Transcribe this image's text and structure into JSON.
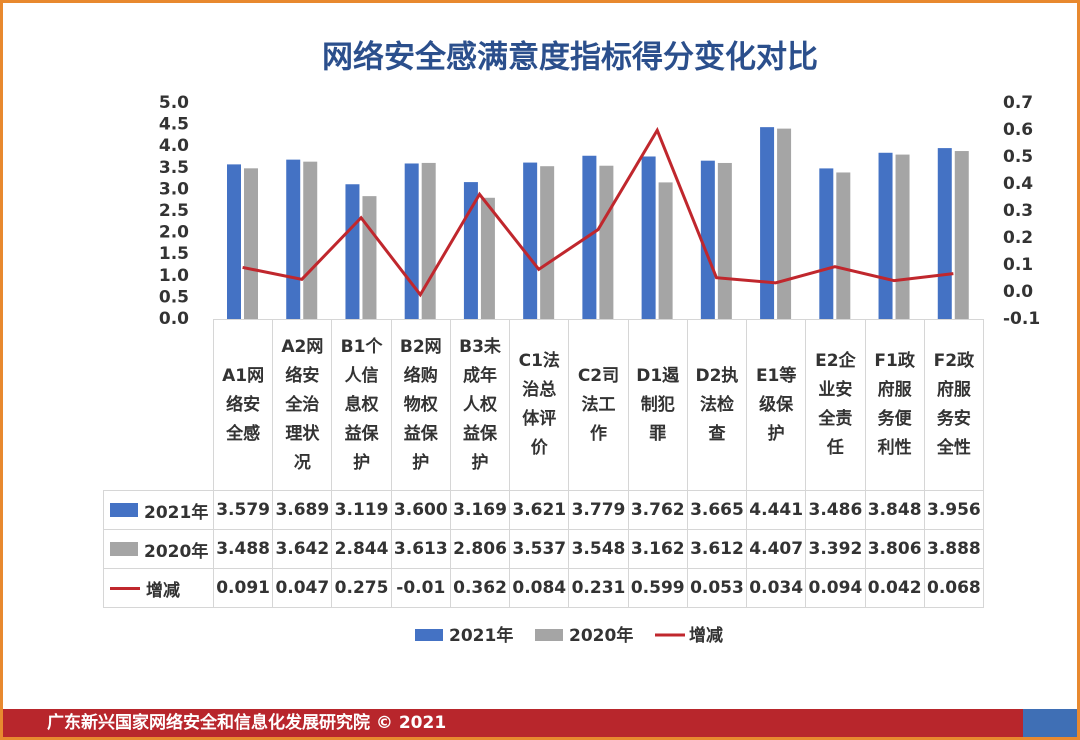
{
  "chart_data": {
    "type": "bar-line-table",
    "title": "网络安全感满意度指标得分变化对比",
    "categories": [
      "A1网络安全感",
      "A2网络安全治理状况",
      "B1个人信息权益保护",
      "B2网络购物权益保护",
      "B3未成年人权益保护",
      "C1法治总体评价",
      "C2司法工作",
      "D1遏制犯罪",
      "D2执法检查",
      "E1等级保护",
      "E2企业安全责任",
      "F1政府服务便利性",
      "F2政府服务安全性"
    ],
    "series": [
      {
        "name": "2021年",
        "color": "#4472c4",
        "type": "bar",
        "values": [
          3.579,
          3.689,
          3.119,
          3.6,
          3.169,
          3.621,
          3.779,
          3.762,
          3.665,
          4.441,
          3.486,
          3.848,
          3.956
        ],
        "value_labels": [
          "3.579",
          "3.689",
          "3.119",
          "3.600",
          "3.169",
          "3.621",
          "3.779",
          "3.762",
          "3.665",
          "4.441",
          "3.486",
          "3.848",
          "3.956"
        ]
      },
      {
        "name": "2020年",
        "color": "#a5a5a5",
        "type": "bar",
        "values": [
          3.488,
          3.642,
          2.844,
          3.613,
          2.806,
          3.537,
          3.548,
          3.162,
          3.612,
          4.407,
          3.392,
          3.806,
          3.888
        ],
        "value_labels": [
          "3.488",
          "3.642",
          "2.844",
          "3.613",
          "2.806",
          "3.537",
          "3.548",
          "3.162",
          "3.612",
          "4.407",
          "3.392",
          "3.806",
          "3.888"
        ]
      },
      {
        "name": "增减",
        "color": "#c0272d",
        "type": "line",
        "axis": "y2",
        "values": [
          0.091,
          0.047,
          0.275,
          -0.01,
          0.362,
          0.084,
          0.231,
          0.599,
          0.053,
          0.034,
          0.094,
          0.042,
          0.068
        ],
        "value_labels": [
          "0.091",
          "0.047",
          "0.275",
          "-0.01",
          "0.362",
          "0.084",
          "0.231",
          "0.599",
          "0.053",
          "0.034",
          "0.094",
          "0.042",
          "0.068"
        ]
      }
    ],
    "ylim": [
      0,
      5
    ],
    "yticks": [
      {
        "value": 0,
        "label": "0.0"
      },
      {
        "value": 0.5,
        "label": "0.5"
      },
      {
        "value": 1,
        "label": "1.0"
      },
      {
        "value": 1.5,
        "label": "1.5"
      },
      {
        "value": 2,
        "label": "2.0"
      },
      {
        "value": 2.5,
        "label": "2.5"
      },
      {
        "value": 3,
        "label": "3.0"
      },
      {
        "value": 3.5,
        "label": "3.5"
      },
      {
        "value": 4,
        "label": "4.0"
      },
      {
        "value": 4.5,
        "label": "4.5"
      },
      {
        "value": 5,
        "label": "5.0"
      }
    ],
    "y2lim": [
      -0.1,
      0.7
    ],
    "y2ticks": [
      -0.1,
      {
        "value": 0,
        "label": "0.0"
      },
      0.1,
      0.2,
      0.3,
      0.4,
      0.5,
      0.6,
      0.7
    ],
    "grid": false,
    "legend": "bottom",
    "footer": "广东新兴国家网络安全和信息化发展研究院 © 2021"
  }
}
